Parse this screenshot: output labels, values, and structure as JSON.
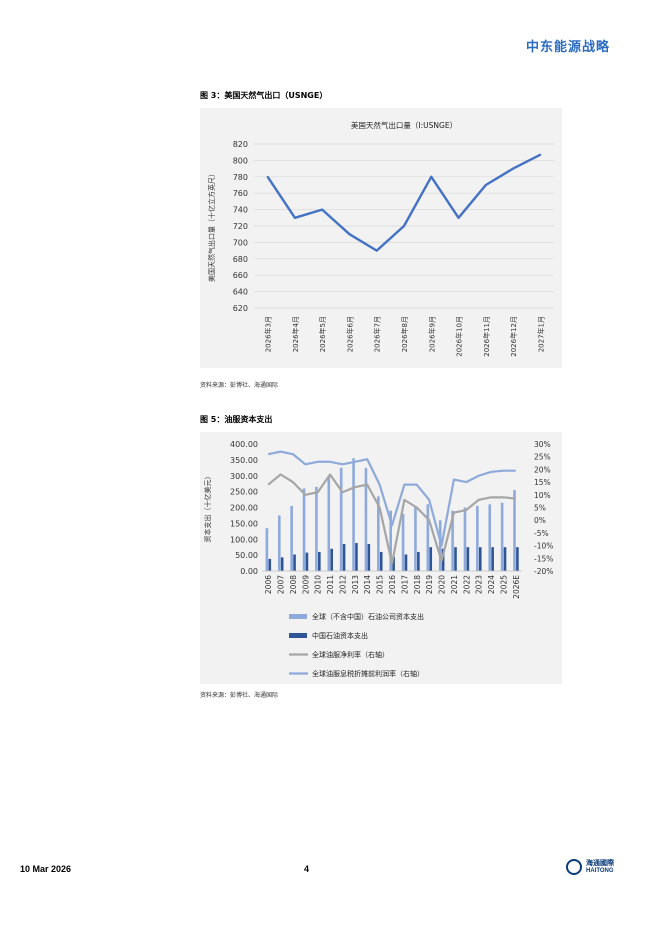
{
  "header": {
    "brand": "中东能源战略"
  },
  "figure3": {
    "title": "图 3：美国天然气出口（USNGE）",
    "source": "资料来源：彭博社、海通国际"
  },
  "figure5": {
    "title": "图 5：油服资本支出",
    "source": "资料来源：彭博社、海通国际"
  },
  "footer": {
    "date": "10 Mar 2026",
    "page": "4",
    "logo_cn": "海通國際",
    "logo_en": "HAITONG"
  },
  "chart_data": [
    {
      "type": "line",
      "title": "美国天然气出口量（I:USNGE）",
      "ylabel": "美国天然气出口量（十亿立方英尺）",
      "xlabel": "",
      "categories": [
        "2026年3月",
        "2026年4月",
        "2026年5月",
        "2026年6月",
        "2026年7月",
        "2026年8月",
        "2026年9月",
        "2026年10月",
        "2026年11月",
        "2026年12月",
        "2027年1月"
      ],
      "series": [
        {
          "values": [
            780,
            730,
            740,
            710,
            690,
            720,
            780,
            730,
            770,
            790,
            807
          ],
          "color": "#4472c4"
        }
      ],
      "ylim": [
        620,
        820
      ],
      "yticks": [
        620,
        640,
        660,
        680,
        700,
        720,
        740,
        760,
        780,
        800,
        820
      ],
      "grid": true,
      "legend": "none"
    },
    {
      "type": "bar",
      "ylabel": "资本支出（十亿美元）",
      "categories": [
        "2006",
        "2007",
        "2008",
        "2009",
        "2010",
        "2011",
        "2012",
        "2013",
        "2014",
        "2015",
        "2016",
        "2017",
        "2018",
        "2019",
        "2020",
        "2021",
        "2022",
        "2023",
        "2024",
        "2025",
        "2026E"
      ],
      "ylim": [
        0,
        400
      ],
      "yticks": [
        0,
        50,
        100,
        150,
        200,
        250,
        300,
        350,
        400
      ],
      "ytick_labels": [
        "0.00",
        "50.00",
        "100.00",
        "150.00",
        "200.00",
        "250.00",
        "300.00",
        "350.00",
        "400.00"
      ],
      "y2lim": [
        -20,
        30
      ],
      "y2ticks": [
        -20,
        -15,
        -10,
        -5,
        0,
        5,
        10,
        15,
        20,
        25,
        30
      ],
      "y2tick_labels": [
        "-20%",
        "-15%",
        "-10%",
        "-5%",
        "0%",
        "5%",
        "10%",
        "15%",
        "20%",
        "25%",
        "30%"
      ],
      "series": [
        {
          "name": "全球（不含中国）石油公司资本支出",
          "kind": "bar",
          "color": "#8eaadb",
          "values": [
            135,
            175,
            205,
            260,
            265,
            300,
            325,
            355,
            325,
            235,
            190,
            180,
            200,
            210,
            160,
            190,
            200,
            205,
            210,
            215,
            255
          ]
        },
        {
          "name": "中国石油资本支出",
          "kind": "bar",
          "color": "#2f5597",
          "values": [
            38,
            43,
            52,
            58,
            60,
            70,
            85,
            88,
            85,
            60,
            45,
            52,
            60,
            75,
            70,
            75,
            75,
            75,
            75,
            75,
            75
          ]
        },
        {
          "name": "全球油服净利率（右轴）",
          "kind": "line",
          "axis": "right",
          "color": "#a6a6a6",
          "values": [
            14,
            18,
            15,
            10,
            11,
            18,
            11,
            13,
            14,
            5,
            -17,
            8,
            5,
            0,
            -16,
            3,
            4,
            8,
            9,
            9,
            8.5
          ]
        },
        {
          "name": "全球油服息税折摊前利润率（右轴）",
          "kind": "line",
          "axis": "right",
          "color": "#8eaadb",
          "values": [
            26,
            27,
            26,
            22,
            23,
            23,
            22,
            23,
            24,
            14,
            -2,
            14,
            14,
            8,
            -10,
            16,
            15,
            17.5,
            19,
            19.5,
            19.5
          ]
        }
      ],
      "legend": "bottom"
    }
  ]
}
